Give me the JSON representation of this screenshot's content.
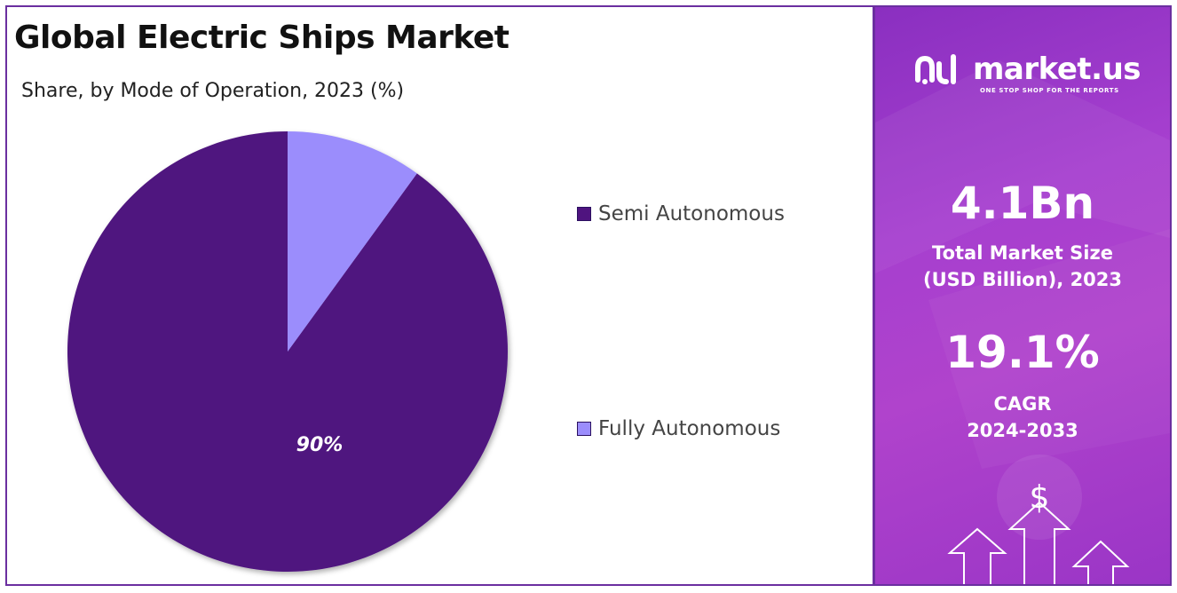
{
  "chart_data": {
    "type": "pie",
    "title": "Global Electric Ships Market",
    "subtitle": "Share, by Mode of Operation, 2023 (%)",
    "slices": [
      {
        "name": "Semi Autonomous",
        "value": 90,
        "label": "90%",
        "color": "#4f147f"
      },
      {
        "name": "Fully Autonomous",
        "value": 10,
        "label": "",
        "color": "#9b8dfc"
      }
    ],
    "legend_position": "right"
  },
  "brand": {
    "name": "market.us",
    "tagline": "ONE STOP SHOP FOR THE REPORTS"
  },
  "stats": {
    "market_size": {
      "value": "4.1Bn",
      "label_line1": "Total Market Size",
      "label_line2": "(USD Billion), 2023"
    },
    "cagr": {
      "value": "19.1%",
      "label_line1": "CAGR",
      "label_line2": "2024-2033"
    }
  },
  "decor": {
    "dollar_icon": "dollar-sign-icon",
    "arrow_icons": "up-arrow-icon"
  },
  "colors": {
    "panel_accent": "#a63fcf",
    "border": "#6b2fa0"
  }
}
